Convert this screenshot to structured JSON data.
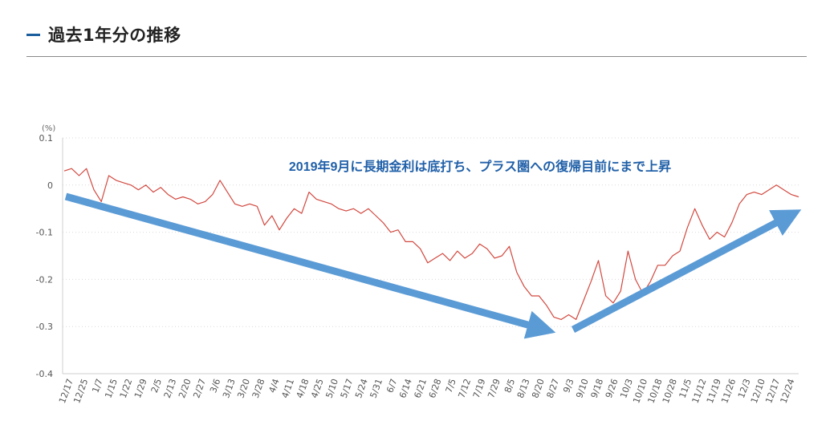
{
  "header": {
    "title": "過去1年分の推移"
  },
  "colors": {
    "line": "#d2483f",
    "arrow": "#5b9bd5",
    "annotation": "#1f5fa8",
    "accent": "#1b5e9e"
  },
  "chart_data": {
    "type": "line",
    "unit_label": "(%)",
    "ylim": [
      -0.4,
      0.1
    ],
    "yticks": [
      0.1,
      0,
      -0.1,
      -0.2,
      -0.3,
      -0.4
    ],
    "ytick_labels": [
      "0.1",
      "0",
      "-0.1",
      "-0.2",
      "-0.3",
      "-0.4"
    ],
    "grid": true,
    "xtick_labels": [
      "12/17",
      "12/25",
      "1/7",
      "1/15",
      "1/22",
      "1/29",
      "2/5",
      "2/13",
      "2/20",
      "2/27",
      "3/6",
      "3/13",
      "3/20",
      "3/28",
      "4/4",
      "4/11",
      "4/18",
      "4/25",
      "5/10",
      "5/17",
      "5/24",
      "5/31",
      "6/7",
      "6/14",
      "6/21",
      "6/28",
      "7/5",
      "7/12",
      "7/19",
      "7/29",
      "8/5",
      "8/13",
      "8/20",
      "8/27",
      "9/3",
      "9/10",
      "9/18",
      "9/26",
      "10/3",
      "10/10",
      "10/18",
      "10/28",
      "11/5",
      "11/12",
      "11/19",
      "11/26",
      "12/3",
      "12/10",
      "12/17",
      "12/24"
    ],
    "series": [
      {
        "values": [
          0.03,
          0.035,
          0.02,
          0.035,
          -0.01,
          -0.035,
          0.02,
          0.01,
          0.005,
          0.0,
          -0.01,
          0.0,
          -0.015,
          -0.005,
          -0.02,
          -0.03,
          -0.025,
          -0.03,
          -0.04,
          -0.035,
          -0.02,
          0.01,
          -0.015,
          -0.04,
          -0.045,
          -0.04,
          -0.045,
          -0.085,
          -0.065,
          -0.095,
          -0.07,
          -0.05,
          -0.06,
          -0.015,
          -0.03,
          -0.035,
          -0.04,
          -0.05,
          -0.055,
          -0.05,
          -0.06,
          -0.05,
          -0.065,
          -0.08,
          -0.1,
          -0.095,
          -0.12,
          -0.12,
          -0.135,
          -0.165,
          -0.155,
          -0.145,
          -0.16,
          -0.14,
          -0.155,
          -0.145,
          -0.125,
          -0.135,
          -0.155,
          -0.15,
          -0.13,
          -0.185,
          -0.215,
          -0.235,
          -0.235,
          -0.255,
          -0.28,
          -0.285,
          -0.275,
          -0.285,
          -0.245,
          -0.205,
          -0.16,
          -0.235,
          -0.25,
          -0.225,
          -0.14,
          -0.2,
          -0.23,
          -0.205,
          -0.17,
          -0.17,
          -0.15,
          -0.14,
          -0.09,
          -0.05,
          -0.085,
          -0.115,
          -0.1,
          -0.11,
          -0.08,
          -0.04,
          -0.02,
          -0.015,
          -0.02,
          -0.01,
          0.0,
          -0.01,
          -0.02,
          -0.025
        ]
      }
    ],
    "annotations": [
      {
        "text": "2019年9月に長期金利は底打ち、プラス圏への復帰目前にまで上昇"
      }
    ]
  }
}
